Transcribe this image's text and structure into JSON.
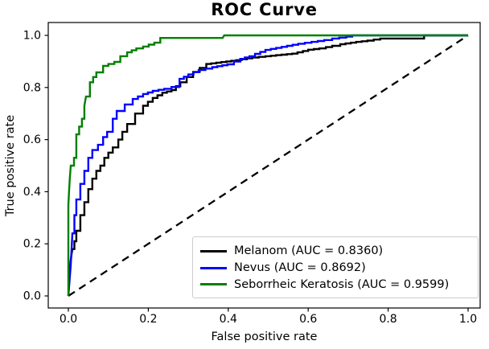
{
  "chart_data": {
    "type": "line",
    "title": "ROC Curve",
    "xlabel": "False positive rate",
    "ylabel": "True positive rate",
    "xticks": [
      0.0,
      0.2,
      0.4,
      0.6,
      0.8,
      1.0
    ],
    "yticks": [
      0.0,
      0.2,
      0.4,
      0.6,
      0.8,
      1.0
    ],
    "xlim": [
      -0.05,
      1.05
    ],
    "ylim": [
      -0.05,
      1.05
    ],
    "grid": false,
    "legend_position": "lower right",
    "reference_line": {
      "name": "chance-diagonal",
      "style": "dashed",
      "color": "#000000",
      "from": [
        0.0,
        0.0
      ],
      "to": [
        1.0,
        1.0
      ]
    },
    "series": [
      {
        "name": "Melanom",
        "auc": 0.836,
        "label": "Melanom (AUC = 0.8360)",
        "color": "#000000",
        "points": [
          [
            0,
            0
          ],
          [
            0.002,
            0.06
          ],
          [
            0.004,
            0.11
          ],
          [
            0.006,
            0.14
          ],
          [
            0.01,
            0.18
          ],
          [
            0.015,
            0.21
          ],
          [
            0.02,
            0.25
          ],
          [
            0.03,
            0.31
          ],
          [
            0.04,
            0.36
          ],
          [
            0.05,
            0.41
          ],
          [
            0.06,
            0.45
          ],
          [
            0.07,
            0.48
          ],
          [
            0.08,
            0.5
          ],
          [
            0.09,
            0.53
          ],
          [
            0.1,
            0.55
          ],
          [
            0.111,
            0.57
          ],
          [
            0.125,
            0.6
          ],
          [
            0.135,
            0.63
          ],
          [
            0.147,
            0.66
          ],
          [
            0.167,
            0.7
          ],
          [
            0.187,
            0.73
          ],
          [
            0.211,
            0.76
          ],
          [
            0.235,
            0.78
          ],
          [
            0.258,
            0.79
          ],
          [
            0.28,
            0.82
          ],
          [
            0.312,
            0.86
          ],
          [
            0.345,
            0.89
          ],
          [
            0.37,
            0.895
          ],
          [
            0.42,
            0.905
          ],
          [
            0.46,
            0.915
          ],
          [
            0.493,
            0.92
          ],
          [
            0.56,
            0.93
          ],
          [
            0.6,
            0.945
          ],
          [
            0.628,
            0.95
          ],
          [
            0.66,
            0.96
          ],
          [
            0.68,
            0.966
          ],
          [
            0.72,
            0.975
          ],
          [
            0.748,
            0.98
          ],
          [
            0.78,
            0.988
          ],
          [
            0.88,
            0.988
          ],
          [
            0.89,
            1.0
          ],
          [
            1.0,
            1.0
          ]
        ]
      },
      {
        "name": "Nevus",
        "auc": 0.8692,
        "label": "Nevus (AUC = 0.8692)",
        "color": "#0000ff",
        "points": [
          [
            0,
            0
          ],
          [
            0.004,
            0.08
          ],
          [
            0.006,
            0.12
          ],
          [
            0.008,
            0.18
          ],
          [
            0.01,
            0.24
          ],
          [
            0.015,
            0.31
          ],
          [
            0.02,
            0.37
          ],
          [
            0.03,
            0.43
          ],
          [
            0.04,
            0.48
          ],
          [
            0.05,
            0.53
          ],
          [
            0.06,
            0.56
          ],
          [
            0.074,
            0.58
          ],
          [
            0.087,
            0.61
          ],
          [
            0.097,
            0.63
          ],
          [
            0.111,
            0.68
          ],
          [
            0.121,
            0.71
          ],
          [
            0.141,
            0.735
          ],
          [
            0.161,
            0.756
          ],
          [
            0.187,
            0.775
          ],
          [
            0.211,
            0.787
          ],
          [
            0.24,
            0.795
          ],
          [
            0.258,
            0.802
          ],
          [
            0.278,
            0.833
          ],
          [
            0.3,
            0.85
          ],
          [
            0.326,
            0.867
          ],
          [
            0.36,
            0.878
          ],
          [
            0.398,
            0.889
          ],
          [
            0.43,
            0.91
          ],
          [
            0.453,
            0.92
          ],
          [
            0.467,
            0.929
          ],
          [
            0.493,
            0.944
          ],
          [
            0.547,
            0.96
          ],
          [
            0.575,
            0.968
          ],
          [
            0.608,
            0.975
          ],
          [
            0.64,
            0.982
          ],
          [
            0.66,
            0.988
          ],
          [
            0.695,
            0.995
          ],
          [
            0.71,
            1.0
          ],
          [
            1.0,
            1.0
          ]
        ]
      },
      {
        "name": "Seborrheic Keratosis",
        "auc": 0.9599,
        "label": "Seborrheic Keratosis (AUC = 0.9599)",
        "color": "#008000",
        "points": [
          [
            0,
            0
          ],
          [
            0,
            0.35
          ],
          [
            0.002,
            0.41
          ],
          [
            0.004,
            0.46
          ],
          [
            0.006,
            0.5
          ],
          [
            0.014,
            0.53
          ],
          [
            0.02,
            0.62
          ],
          [
            0.027,
            0.65
          ],
          [
            0.034,
            0.68
          ],
          [
            0.04,
            0.73
          ],
          [
            0.044,
            0.765
          ],
          [
            0.054,
            0.82
          ],
          [
            0.062,
            0.84
          ],
          [
            0.07,
            0.858
          ],
          [
            0.087,
            0.883
          ],
          [
            0.1,
            0.89
          ],
          [
            0.115,
            0.898
          ],
          [
            0.13,
            0.92
          ],
          [
            0.147,
            0.935
          ],
          [
            0.17,
            0.95
          ],
          [
            0.187,
            0.957
          ],
          [
            0.215,
            0.972
          ],
          [
            0.23,
            0.99
          ],
          [
            0.386,
            0.99
          ],
          [
            0.39,
            1.0
          ],
          [
            1.0,
            1.0
          ]
        ]
      }
    ]
  }
}
